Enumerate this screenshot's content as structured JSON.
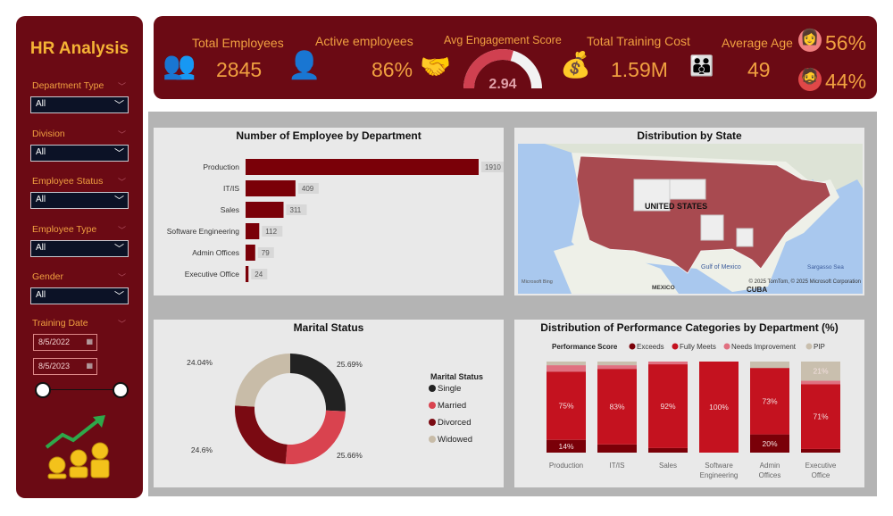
{
  "sidebar": {
    "title": "HR Analysis",
    "filters": [
      {
        "label": "Department Type",
        "value": "All"
      },
      {
        "label": "Division",
        "value": "All"
      },
      {
        "label": "Employee Status",
        "value": "All"
      },
      {
        "label": "Employee Type",
        "value": "All"
      },
      {
        "label": "Gender",
        "value": "All"
      }
    ],
    "training_date": {
      "label": "Training Date",
      "start": "8/5/2022",
      "end": "8/5/2023"
    }
  },
  "kpis": {
    "total_employees": {
      "label": "Total Employees",
      "value": "2845"
    },
    "active": {
      "label": "Active employees",
      "value": "86%"
    },
    "engagement": {
      "label": "Avg Engagement Score",
      "value": "2.94",
      "fraction": 0.588
    },
    "training_cost": {
      "label": "Total Training Cost",
      "value": "1.59M"
    },
    "age": {
      "label": "Average Age",
      "value": "49"
    },
    "female_pct": "56%",
    "male_pct": "44%"
  },
  "colors": {
    "maroon": "#6b0a14",
    "accent": "#f0a040",
    "bar": "#7a0008"
  },
  "chart_data": [
    {
      "type": "bar",
      "title": "Number of Employee by Department",
      "categories": [
        "Production",
        "IT/IS",
        "Sales",
        "Software Engineering",
        "Admin Offices",
        "Executive Office"
      ],
      "values": [
        1910,
        409,
        311,
        112,
        79,
        24
      ],
      "data_labels": [
        "1910",
        "409",
        "311",
        "112",
        "79",
        "24"
      ]
    },
    {
      "type": "map",
      "title": "Distribution by State",
      "map_label": "UNITED STATES",
      "place_labels": [
        "MEXICO",
        "Gulf of Mexico",
        "Sargasso Sea",
        "CUBA"
      ],
      "attribution": "© 2025 TomTom, © 2025 Microsoft Corporation",
      "logo": "Microsoft Bing"
    },
    {
      "type": "pie",
      "title": "Marital Status",
      "legend_title": "Marital Status",
      "legend": "right",
      "categories": [
        "Single",
        "Married",
        "Divorced",
        "Widowed"
      ],
      "values": [
        25.69,
        25.66,
        24.6,
        24.04
      ],
      "data_labels": [
        "25.69%",
        "25.66%",
        "24.6%",
        "24.04%"
      ],
      "colors": [
        "#222222",
        "#d9434f",
        "#7a0a12",
        "#c8bca8"
      ]
    },
    {
      "type": "bar",
      "stacked": true,
      "title": "Distribution of Performance Categories by Department (%)",
      "legend_title": "Performance Score",
      "legend": "top",
      "categories": [
        "Production",
        "IT/IS",
        "Sales",
        "Software Engineering",
        "Admin Offices",
        "Executive Office"
      ],
      "series": [
        {
          "name": "Exceeds",
          "color": "#7a0008",
          "values": [
            14,
            9,
            5,
            0,
            20,
            4
          ],
          "labels": [
            "14%",
            "",
            "",
            "",
            "20%",
            ""
          ]
        },
        {
          "name": "Fully Meets",
          "color": "#c4121f",
          "values": [
            75,
            83,
            92,
            100,
            73,
            71
          ],
          "labels": [
            "75%",
            "83%",
            "92%",
            "100%",
            "73%",
            "71%"
          ]
        },
        {
          "name": "Needs Improvement",
          "color": "#e07080",
          "values": [
            7,
            4,
            3,
            0,
            0,
            4
          ],
          "labels": [
            "",
            "",
            "",
            "",
            "",
            ""
          ]
        },
        {
          "name": "PIP",
          "color": "#c9bfae",
          "values": [
            4,
            4,
            0,
            0,
            7,
            21
          ],
          "labels": [
            "",
            "",
            "",
            "",
            "",
            "21%"
          ]
        }
      ],
      "ylim": [
        0,
        100
      ]
    }
  ]
}
